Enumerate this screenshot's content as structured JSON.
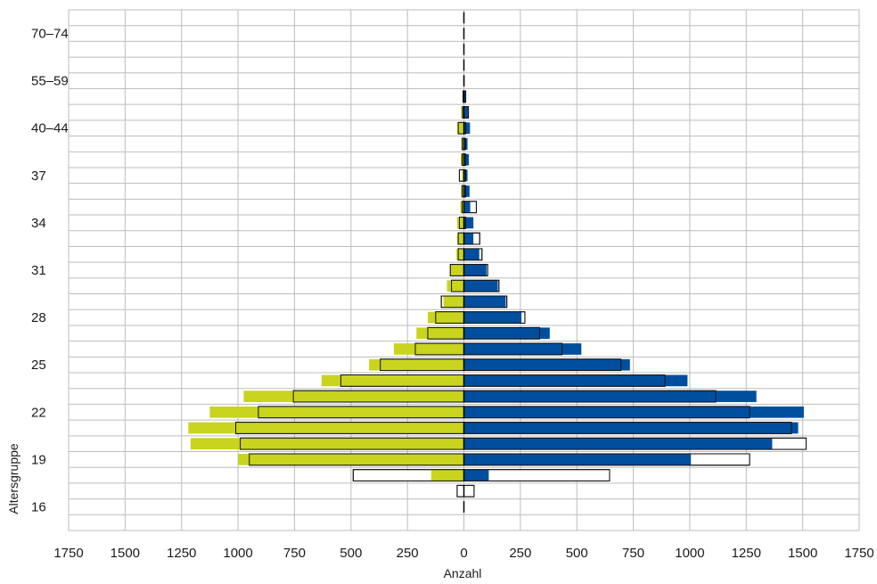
{
  "colors": {
    "female_fill": "#c8d41e",
    "male_fill": "#004f9f",
    "comparison_fill": "#ffffff",
    "comparison_stroke": "#111111",
    "grid": "#bdbdbd",
    "zero_line": "#000000"
  },
  "chart_data": {
    "type": "bar",
    "orientation": "horizontal",
    "layout": "population-pyramid",
    "xlabel": "Anzahl",
    "ylabel": "Altersgruppe",
    "xlim": [
      -1750,
      1750
    ],
    "x_ticks": [
      -1750,
      -1500,
      -1250,
      -1000,
      -750,
      -500,
      -250,
      0,
      250,
      500,
      750,
      1000,
      1250,
      1500,
      1750
    ],
    "x_tick_labels": [
      "1750",
      "1500",
      "1250",
      "1000",
      "750",
      "500",
      "250",
      "0",
      "250",
      "500",
      "750",
      "1000",
      "1250",
      "1500",
      "1750"
    ],
    "grid": true,
    "y_tick_labels": [
      {
        "row": 2,
        "label": "70–74"
      },
      {
        "row": 5,
        "label": "55–59"
      },
      {
        "row": 8,
        "label": "40–44"
      },
      {
        "row": 11,
        "label": "37"
      },
      {
        "row": 14,
        "label": "34"
      },
      {
        "row": 17,
        "label": "31"
      },
      {
        "row": 20,
        "label": "28"
      },
      {
        "row": 23,
        "label": "25"
      },
      {
        "row": 26,
        "label": "22"
      },
      {
        "row": 29,
        "label": "19"
      },
      {
        "row": 32,
        "label": "16"
      }
    ],
    "rows": [
      {
        "row": 1,
        "left_filled": 2,
        "left_outline": 0,
        "right_filled": 2,
        "right_outline": 0
      },
      {
        "row": 2,
        "left_filled": 0,
        "left_outline": 0,
        "right_filled": 0,
        "right_outline": 0
      },
      {
        "row": 3,
        "left_filled": 0,
        "left_outline": 0,
        "right_filled": 0,
        "right_outline": 0
      },
      {
        "row": 4,
        "left_filled": 1,
        "left_outline": 0,
        "right_filled": 1,
        "right_outline": 0
      },
      {
        "row": 5,
        "left_filled": 2,
        "left_outline": 0,
        "right_filled": 3,
        "right_outline": 0
      },
      {
        "row": 6,
        "left_filled": 4,
        "left_outline": 4,
        "right_filled": 10,
        "right_outline": 8
      },
      {
        "row": 7,
        "left_filled": 12,
        "left_outline": 6,
        "right_filled": 18,
        "right_outline": 20
      },
      {
        "row": 8,
        "left_filled": 30,
        "left_outline": 25,
        "right_filled": 27,
        "right_outline": 8
      },
      {
        "row": 9,
        "left_filled": 8,
        "left_outline": 8,
        "right_filled": 16,
        "right_outline": 8
      },
      {
        "row": 10,
        "left_filled": 14,
        "left_outline": 8,
        "right_filled": 22,
        "right_outline": 8
      },
      {
        "row": 11,
        "left_filled": 8,
        "left_outline": 20,
        "right_filled": 16,
        "right_outline": 8
      },
      {
        "row": 12,
        "left_filled": 12,
        "left_outline": 8,
        "right_filled": 25,
        "right_outline": 8
      },
      {
        "row": 13,
        "left_filled": 16,
        "left_outline": 8,
        "right_filled": 28,
        "right_outline": 55
      },
      {
        "row": 14,
        "left_filled": 30,
        "left_outline": 20,
        "right_filled": 42,
        "right_outline": 8
      },
      {
        "row": 15,
        "left_filled": 30,
        "left_outline": 25,
        "right_filled": 42,
        "right_outline": 70
      },
      {
        "row": 16,
        "left_filled": 33,
        "left_outline": 25,
        "right_filled": 68,
        "right_outline": 80
      },
      {
        "row": 17,
        "left_filled": 60,
        "left_outline": 60,
        "right_filled": 100,
        "right_outline": 105
      },
      {
        "row": 18,
        "left_filled": 75,
        "left_outline": 55,
        "right_filled": 150,
        "right_outline": 155
      },
      {
        "row": 19,
        "left_filled": 90,
        "left_outline": 100,
        "right_filled": 185,
        "right_outline": 190
      },
      {
        "row": 20,
        "left_filled": 160,
        "left_outline": 125,
        "right_filled": 255,
        "right_outline": 270
      },
      {
        "row": 21,
        "left_filled": 210,
        "left_outline": 160,
        "right_filled": 380,
        "right_outline": 335
      },
      {
        "row": 22,
        "left_filled": 310,
        "left_outline": 215,
        "right_filled": 520,
        "right_outline": 435
      },
      {
        "row": 23,
        "left_filled": 420,
        "left_outline": 370,
        "right_filled": 735,
        "right_outline": 695
      },
      {
        "row": 24,
        "left_filled": 630,
        "left_outline": 545,
        "right_filled": 990,
        "right_outline": 890
      },
      {
        "row": 25,
        "left_filled": 975,
        "left_outline": 755,
        "right_filled": 1295,
        "right_outline": 1115
      },
      {
        "row": 26,
        "left_filled": 1125,
        "left_outline": 910,
        "right_filled": 1505,
        "right_outline": 1265
      },
      {
        "row": 27,
        "left_filled": 1220,
        "left_outline": 1010,
        "right_filled": 1480,
        "right_outline": 1450
      },
      {
        "row": 28,
        "left_filled": 1210,
        "left_outline": 990,
        "right_filled": 1365,
        "right_outline": 1515
      },
      {
        "row": 29,
        "left_filled": 1000,
        "left_outline": 950,
        "right_filled": 1005,
        "right_outline": 1265
      },
      {
        "row": 30,
        "left_filled": 145,
        "left_outline": 490,
        "right_filled": 110,
        "right_outline": 645
      },
      {
        "row": 31,
        "left_filled": 2,
        "left_outline": 30,
        "right_filled": 2,
        "right_outline": 45
      },
      {
        "row": 32,
        "left_filled": 2,
        "left_outline": 0,
        "right_filled": 2,
        "right_outline": 0
      }
    ]
  }
}
